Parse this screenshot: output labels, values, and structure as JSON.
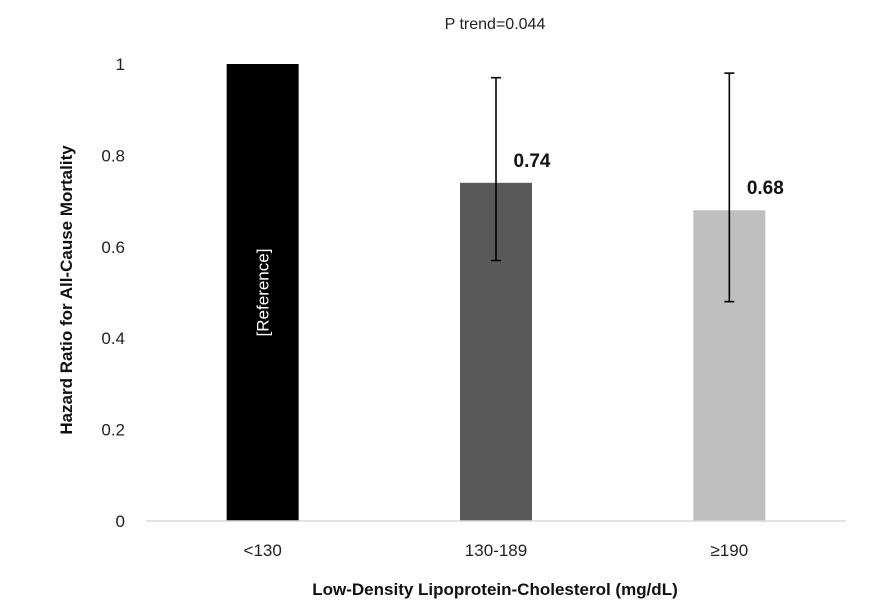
{
  "chart_data": {
    "type": "bar",
    "title": "P trend=0.044",
    "xlabel": "Low-Density Lipoprotein-Cholesterol (mg/dL)",
    "ylabel": "Hazard Ratio for All-Cause Mortality",
    "ylim": [
      0,
      1
    ],
    "yticks": [
      0,
      0.2,
      0.4,
      0.6,
      0.8,
      1
    ],
    "ytick_labels": [
      "0",
      "0.2",
      "0.4",
      "0.6",
      "0.8",
      "1"
    ],
    "categories": [
      "<130",
      "130-189",
      "≥190"
    ],
    "values": [
      1,
      0.74,
      0.68
    ],
    "ci_lower": [
      null,
      0.57,
      0.48
    ],
    "ci_upper": [
      null,
      0.97,
      0.98
    ],
    "data_labels": [
      "",
      "0.74",
      "0.68"
    ],
    "annotations": [
      "[Reference]"
    ],
    "colors": [
      "#000000",
      "#595959",
      "#bfbfbf"
    ],
    "grid": false
  }
}
